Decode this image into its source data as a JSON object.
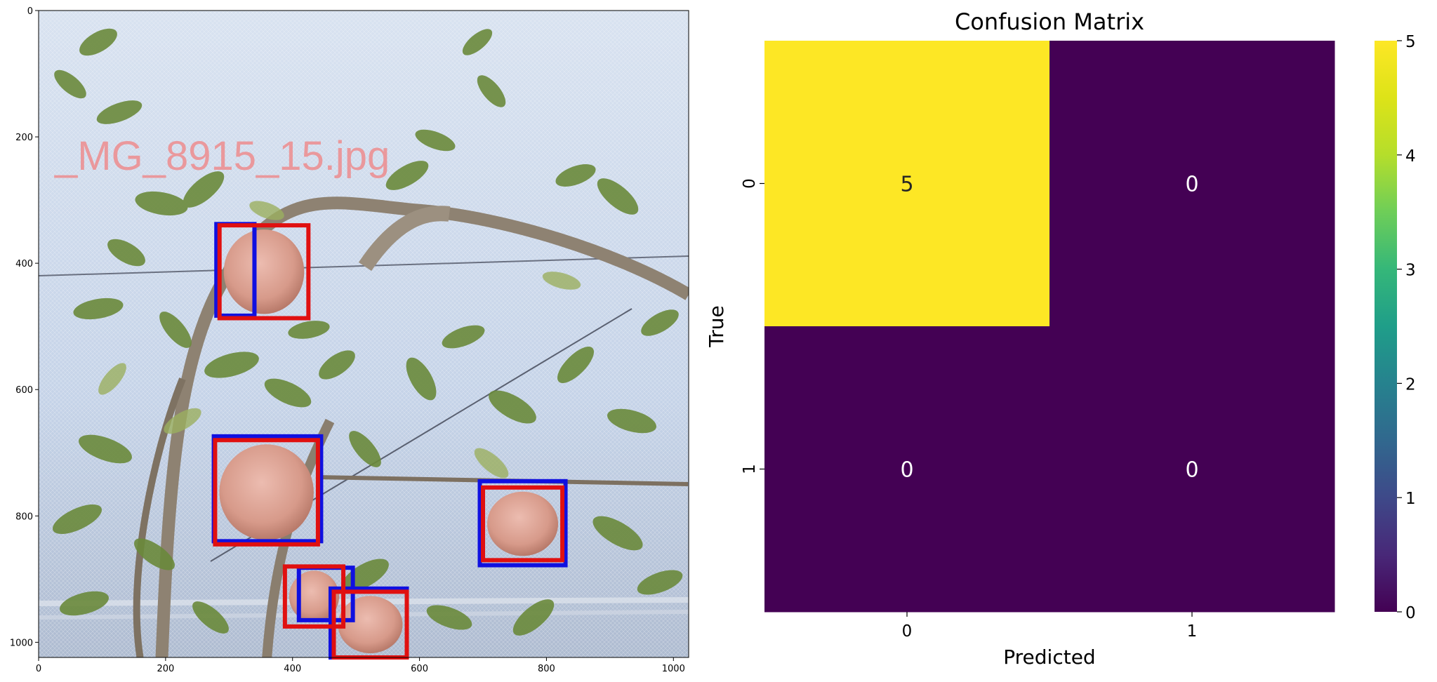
{
  "image_panel": {
    "overlay_text": "_MG_8915_15.jpg",
    "x_ticks": [
      0,
      200,
      400,
      600,
      800,
      1000
    ],
    "y_ticks": [
      0,
      200,
      400,
      600,
      800,
      1000
    ],
    "image_size": [
      1024,
      1024
    ],
    "box_colors": {
      "ground_truth": "#1010e0",
      "prediction": "#e01010"
    },
    "boxes_blue": [
      {
        "x0": 280,
        "y0": 338,
        "x1": 340,
        "y1": 483
      },
      {
        "x0": 276,
        "y0": 674,
        "x1": 445,
        "y1": 840
      },
      {
        "x0": 695,
        "y0": 745,
        "x1": 830,
        "y1": 878
      },
      {
        "x0": 410,
        "y0": 882,
        "x1": 495,
        "y1": 965
      },
      {
        "x0": 460,
        "y0": 915,
        "x1": 580,
        "y1": 1024
      }
    ],
    "boxes_red": [
      {
        "x0": 285,
        "y0": 340,
        "x1": 425,
        "y1": 487
      },
      {
        "x0": 278,
        "y0": 680,
        "x1": 440,
        "y1": 845
      },
      {
        "x0": 700,
        "y0": 755,
        "x1": 825,
        "y1": 870
      },
      {
        "x0": 388,
        "y0": 880,
        "x1": 480,
        "y1": 975
      },
      {
        "x0": 465,
        "y0": 920,
        "x1": 580,
        "y1": 1024
      }
    ]
  },
  "chart_data": {
    "type": "heatmap",
    "title": "Confusion Matrix",
    "xlabel": "Predicted",
    "ylabel": "True",
    "x_categories": [
      "0",
      "1"
    ],
    "y_categories": [
      "0",
      "1"
    ],
    "values": [
      [
        5,
        0
      ],
      [
        0,
        0
      ]
    ],
    "colormap": "viridis",
    "colorbar_range": [
      0,
      5
    ],
    "colorbar_ticks": [
      "0",
      "1",
      "2",
      "3",
      "4",
      "5"
    ],
    "annotation_colors": {
      "high": "#262626",
      "low": "#ffffff"
    }
  }
}
